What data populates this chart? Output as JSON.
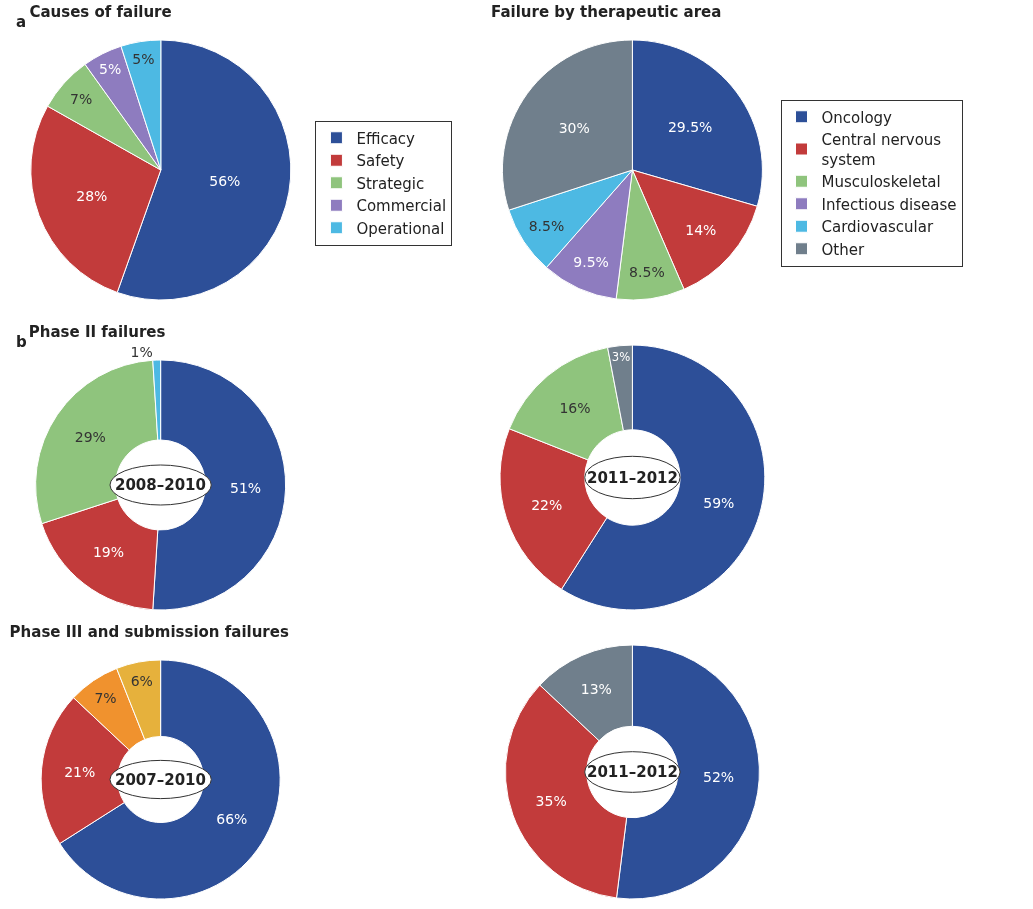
{
  "chart_data": [
    {
      "type": "pie",
      "title": "Causes of failure",
      "annotations": [
        "a"
      ],
      "legend": "right",
      "categories": [
        "Efficacy",
        "Safety",
        "Strategic",
        "Commercial",
        "Operational"
      ],
      "values": [
        56,
        28,
        7,
        5,
        5
      ],
      "value_labels": [
        "56%",
        "28%",
        "7%",
        "5%",
        "5%"
      ],
      "colors": [
        "#2d4f98",
        "#c23b3b",
        "#8fc47d",
        "#8e7cbf",
        "#4db9e3"
      ]
    },
    {
      "type": "pie",
      "title": "Failure by therapeutic area",
      "legend": "right",
      "categories": [
        "Oncology",
        "Central nervous system",
        "Musculoskeletal",
        "Infectious disease",
        "Cardiovascular",
        "Other"
      ],
      "values": [
        29.5,
        14,
        8.5,
        9.5,
        8.5,
        30
      ],
      "value_labels": [
        "29.5%",
        "14%",
        "8.5%",
        "9.5%",
        "8.5%",
        "30%"
      ],
      "colors": [
        "#2d4f98",
        "#c23b3b",
        "#8fc47d",
        "#8e7cbf",
        "#4db9e3",
        "#707f8c"
      ]
    },
    {
      "type": "donut",
      "title": "Phase II failures",
      "annotations": [
        "b"
      ],
      "subtitle": "2008–2010",
      "categories": [
        null,
        null,
        null,
        null
      ],
      "values": [
        51,
        19,
        29,
        1
      ],
      "value_labels": [
        "51%",
        "19%",
        "29%",
        "1%"
      ],
      "colors": [
        "#2d4f98",
        "#c23b3b",
        "#8fc47d",
        "#4db9e3"
      ]
    },
    {
      "type": "donut",
      "subtitle": "2011–2012",
      "categories": [
        null,
        null,
        null,
        null
      ],
      "values": [
        59,
        22,
        16,
        3
      ],
      "value_labels": [
        "59%",
        "22%",
        "16%",
        "3%"
      ],
      "colors": [
        "#2d4f98",
        "#c23b3b",
        "#8fc47d",
        "#707f8c"
      ]
    },
    {
      "type": "donut",
      "title": "Phase III and submission failures",
      "subtitle": "2007–2010",
      "categories": [
        null,
        null,
        null,
        null
      ],
      "values": [
        66,
        21,
        7,
        6
      ],
      "value_labels": [
        "66%",
        "21%",
        "7%",
        "6%"
      ],
      "colors": [
        "#2d4f98",
        "#c23b3b",
        "#f0922e",
        "#e6b13c"
      ]
    },
    {
      "type": "donut",
      "subtitle": "2011–2012",
      "categories": [
        null,
        null,
        null
      ],
      "values": [
        52,
        35,
        13
      ],
      "value_labels": [
        "52%",
        "35%",
        "13%"
      ],
      "colors": [
        "#2d4f98",
        "#c23b3b",
        "#707f8c"
      ]
    }
  ]
}
